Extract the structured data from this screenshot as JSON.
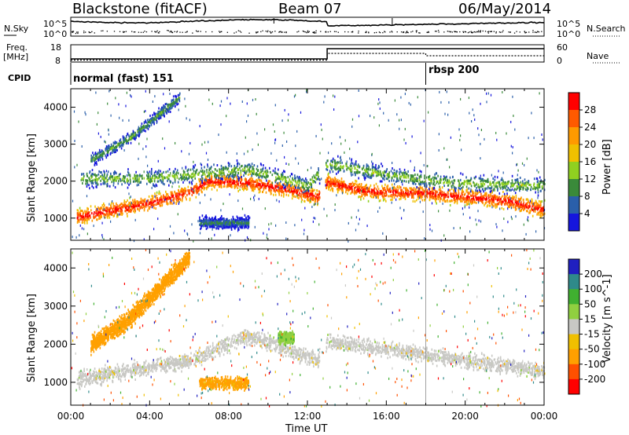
{
  "header": {
    "radar": "Blackstone (fitACF)",
    "beam": "Beam 07",
    "date": "06/May/2014"
  },
  "noise_panel": {
    "left_label": "N.Sky",
    "left_ticks": [
      "10^5",
      "10^0"
    ],
    "right_label": "N.Search",
    "right_ticks": [
      "10^5",
      "10^0"
    ]
  },
  "freq_panel": {
    "left_label_1": "Freq.",
    "left_label_2": "[MHz]",
    "left_ticks": [
      "18",
      "8"
    ],
    "right_label": "Nave",
    "right_ticks": [
      "60",
      "0"
    ]
  },
  "cpid_panel": {
    "label": "CPID",
    "segments": [
      {
        "start_hour": 0,
        "text": "normal (fast) 151"
      },
      {
        "start_hour": 18,
        "text": "rbsp 200"
      }
    ]
  },
  "axes": {
    "xlabel": "Time UT",
    "x_ticks": [
      "00:00",
      "04:00",
      "08:00",
      "12:00",
      "16:00",
      "20:00",
      "00:00"
    ],
    "ylabel": "Slant Range [km]",
    "y_ticks": [
      "1000",
      "2000",
      "3000",
      "4000"
    ]
  },
  "power_scale": {
    "label": "Power [dB]",
    "ticks": [
      "28",
      "24",
      "20",
      "16",
      "12",
      "8",
      "4"
    ],
    "colors": [
      "#ff0000",
      "#ff5a00",
      "#ff9a00",
      "#f0c000",
      "#90d020",
      "#3a8a3a",
      "#2a5faa",
      "#1515dd"
    ]
  },
  "velocity_scale": {
    "label": "Velocity [m s^-1]",
    "ticks": [
      "200",
      "100",
      "50",
      "15",
      "-15",
      "-50",
      "-100",
      "-200"
    ],
    "colors": [
      "#2020c0",
      "#2f8a8a",
      "#40b030",
      "#90d040",
      "#c8c8c4",
      "#f0c000",
      "#ffa000",
      "#ff5000",
      "#ff0000"
    ]
  },
  "chart_data": [
    {
      "type": "heatmap",
      "panel": "power",
      "xlabel": "Time UT",
      "ylabel": "Slant Range [km]",
      "xlim": [
        0,
        24
      ],
      "ylim": [
        400,
        4500
      ],
      "colorbar": {
        "label": "Power [dB]",
        "range": [
          0,
          32
        ]
      },
      "features": [
        {
          "name": "ground scatter band",
          "points": [
            [
              0.3,
              1050
            ],
            [
              2,
              1230
            ],
            [
              4,
              1430
            ],
            [
              6,
              1720
            ],
            [
              7,
              2030
            ],
            [
              9,
              1980
            ],
            [
              11,
              1800
            ],
            [
              12.5,
              1600
            ],
            [
              13,
              2000
            ],
            [
              15,
              1750
            ],
            [
              18,
              1700
            ],
            [
              20,
              1600
            ],
            [
              22,
              1500
            ],
            [
              24,
              1250
            ]
          ],
          "peak_dB": 30
        },
        {
          "name": "upper band",
          "points": [
            [
              0.5,
              2100
            ],
            [
              4,
              2100
            ],
            [
              6,
              2200
            ],
            [
              9,
              2350
            ],
            [
              12,
              1900
            ],
            [
              13,
              2500
            ],
            [
              16,
              2200
            ],
            [
              19,
              2000
            ],
            [
              24,
              1900
            ]
          ],
          "peak_dB": 14
        },
        {
          "name": "high-range streak",
          "points": [
            [
              1,
              2600
            ],
            [
              3,
              3200
            ],
            [
              5.5,
              4300
            ]
          ],
          "peak_dB": 12
        },
        {
          "name": "patch",
          "points": [
            [
              6.5,
              900
            ],
            [
              9,
              900
            ]
          ],
          "peak_dB": 10
        }
      ]
    },
    {
      "type": "heatmap",
      "panel": "velocity",
      "xlabel": "Time UT",
      "ylabel": "Slant Range [km]",
      "xlim": [
        0,
        24
      ],
      "ylim": [
        400,
        4500
      ],
      "colorbar": {
        "label": "Velocity [m s^-1]",
        "range": [
          -250,
          250
        ]
      },
      "features": [
        {
          "name": "ground scatter (~0 m/s)",
          "points": [
            [
              0.3,
              1100
            ],
            [
              6,
              1600
            ],
            [
              9,
              2250
            ],
            [
              12.5,
              1600
            ],
            [
              13,
              2100
            ],
            [
              18,
              1750
            ],
            [
              24,
              1300
            ]
          ],
          "value": 0
        },
        {
          "name": "westward flow streak",
          "points": [
            [
              1,
              2000
            ],
            [
              3,
              2700
            ],
            [
              6,
              4300
            ]
          ],
          "value": -70
        },
        {
          "name": "patch",
          "points": [
            [
              6.5,
              1000
            ],
            [
              9,
              1000
            ]
          ],
          "value": -60
        },
        {
          "name": "positive strip",
          "points": [
            [
              10.5,
              2200
            ],
            [
              11.3,
              2200
            ]
          ],
          "value": 40
        }
      ]
    }
  ]
}
